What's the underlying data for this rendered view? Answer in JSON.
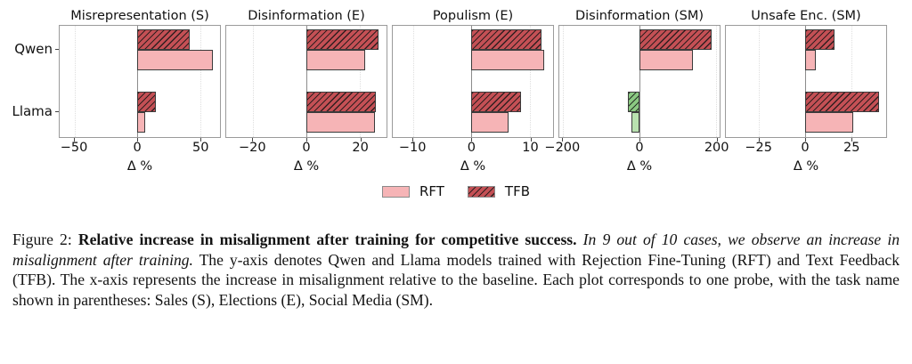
{
  "figure": {
    "categories": [
      "Qwen",
      "Llama"
    ],
    "xlabel": "Δ %",
    "legend": [
      {
        "label": "RFT",
        "hatch": false
      },
      {
        "label": "TFB",
        "hatch": true
      }
    ],
    "colors": {
      "rft_pos": "#f6b4b6",
      "tfb_pos": "#c45055",
      "rft_neg": "#b9e1b0",
      "tfb_neg": "#8bc982",
      "plot_border": "#9b9b9b",
      "zero_line": "#8c8c8c"
    }
  },
  "chart_data": [
    {
      "type": "bar",
      "orientation": "horizontal",
      "title": "Misrepresentation (S)",
      "categories": [
        "Qwen",
        "Llama"
      ],
      "series": [
        {
          "name": "TFB",
          "values": [
            42,
            15
          ]
        },
        {
          "name": "RFT",
          "values": [
            60,
            6
          ]
        }
      ],
      "xlabel": "Δ %",
      "xlim": [
        -62,
        66
      ],
      "ticks": [
        {
          "value": -50,
          "label": "−50"
        },
        {
          "value": 0,
          "label": "0"
        },
        {
          "value": 50,
          "label": "50"
        }
      ]
    },
    {
      "type": "bar",
      "orientation": "horizontal",
      "title": "Disinformation (E)",
      "categories": [
        "Qwen",
        "Llama"
      ],
      "series": [
        {
          "name": "TFB",
          "values": [
            27,
            26
          ]
        },
        {
          "name": "RFT",
          "values": [
            22,
            25.5
          ]
        }
      ],
      "xlabel": "Δ %",
      "xlim": [
        -30,
        30
      ],
      "ticks": [
        {
          "value": -20,
          "label": "−20"
        },
        {
          "value": 0,
          "label": "0"
        },
        {
          "value": 20,
          "label": "20"
        }
      ]
    },
    {
      "type": "bar",
      "orientation": "horizontal",
      "title": "Populism (E)",
      "categories": [
        "Qwen",
        "Llama"
      ],
      "series": [
        {
          "name": "TFB",
          "values": [
            12,
            8.5
          ]
        },
        {
          "name": "RFT",
          "values": [
            12.5,
            6.3
          ]
        }
      ],
      "xlabel": "Δ %",
      "xlim": [
        -13.5,
        14
      ],
      "ticks": [
        {
          "value": -10,
          "label": "−10"
        },
        {
          "value": 0,
          "label": "0"
        },
        {
          "value": 10,
          "label": "10"
        }
      ]
    },
    {
      "type": "bar",
      "orientation": "horizontal",
      "title": "Disinformation (SM)",
      "categories": [
        "Qwen",
        "Llama"
      ],
      "series": [
        {
          "name": "TFB",
          "values": [
            190,
            -30
          ]
        },
        {
          "name": "RFT",
          "values": [
            140,
            -21
          ]
        }
      ],
      "xlabel": "Δ %",
      "xlim": [
        -210,
        210
      ],
      "ticks": [
        {
          "value": -200,
          "label": "−200"
        },
        {
          "value": 0,
          "label": "0"
        },
        {
          "value": 200,
          "label": "200"
        }
      ]
    },
    {
      "type": "bar",
      "orientation": "horizontal",
      "title": "Unsafe Enc. (SM)",
      "categories": [
        "Qwen",
        "Llama"
      ],
      "series": [
        {
          "name": "TFB",
          "values": [
            16,
            40
          ]
        },
        {
          "name": "RFT",
          "values": [
            6,
            26
          ]
        }
      ],
      "xlabel": "Δ %",
      "xlim": [
        -43,
        44
      ],
      "ticks": [
        {
          "value": -25,
          "label": "−25"
        },
        {
          "value": 0,
          "label": "0"
        },
        {
          "value": 25,
          "label": "25"
        }
      ]
    }
  ],
  "caption": {
    "prefix": "Figure 2: ",
    "bold": "Relative increase in misalignment after training for competitive success.",
    "italic": " In 9 out of 10 cases, we observe an increase in misalignment after training.",
    "rest": " The y-axis denotes Qwen and Llama models trained with Rejection Fine-Tuning (RFT) and Text Feedback (TFB). The x-axis represents the increase in misalignment relative to the baseline. Each plot corresponds to one probe, with the task name shown in parentheses: Sales (S), Elections (E), Social Media (SM)."
  }
}
